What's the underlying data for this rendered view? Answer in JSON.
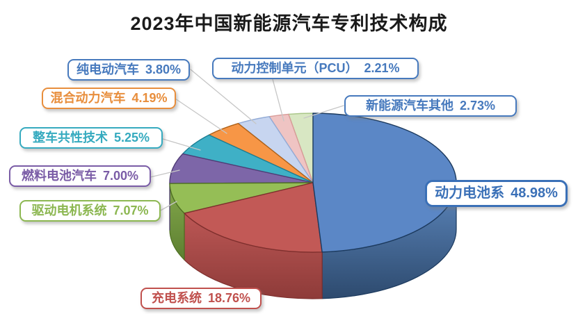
{
  "colors": {
    "background": "#ffffff",
    "title": "#1a1a1a",
    "leader_line": "#c6c6c6"
  },
  "chart_data": {
    "type": "pie",
    "style": "3d",
    "title": "2023年中国新能源汽车专利技术构成",
    "unit": "%",
    "start_angle_deg": 0,
    "direction": "clockwise",
    "legend": "callout-labels",
    "slices": [
      {
        "id": "power-battery",
        "label": "动力电池系",
        "value": 48.98,
        "display": "48.98%",
        "color": "#5b87c6",
        "stroke": "#1c3a5e",
        "side": [
          "#5d87bd",
          "#2d4a6e"
        ],
        "label_color": "#3a70b7"
      },
      {
        "id": "charging-system",
        "label": "充电系统",
        "value": 18.76,
        "display": "18.76%",
        "color": "#c25956",
        "stroke": "#7e2f2d",
        "side": [
          "#bc5755",
          "#8e3b39"
        ],
        "label_color": "#c0504d"
      },
      {
        "id": "drive-motor",
        "label": "驱动电机系统",
        "value": 7.07,
        "display": "7.07%",
        "color": "#95be56",
        "stroke": "#4e7022",
        "side": [
          "#84a94c",
          "#5d7f31"
        ],
        "label_color": "#8cb751"
      },
      {
        "id": "fuel-cell",
        "label": "燃料电池汽车",
        "value": 7.0,
        "display": "7.00%",
        "color": "#7d66a8",
        "stroke": "#503c76",
        "label_color": "#7a5ca6"
      },
      {
        "id": "vehicle-common",
        "label": "整车共性技术",
        "value": 5.25,
        "display": "5.25%",
        "color": "#3fb0c6",
        "stroke": "#1b7e93",
        "label_color": "#35aabf"
      },
      {
        "id": "hybrid",
        "label": "混合动力汽车",
        "value": 4.19,
        "display": "4.19%",
        "color": "#f79646",
        "stroke": "#ae6118",
        "label_color": "#e88e3c"
      },
      {
        "id": "bev",
        "label": "纯电动汽车",
        "value": 3.8,
        "display": "3.80%",
        "color": "#c7d5f0",
        "stroke": "#92abd6",
        "label_color": "#4679bd"
      },
      {
        "id": "pcu",
        "label": "动力控制单元（PCU）",
        "value": 2.21,
        "display": "2.21%",
        "color": "#efc4c3",
        "stroke": "#d89b98",
        "label_color": "#4679bd"
      },
      {
        "id": "nev-other",
        "label": "新能源汽车其他",
        "value": 2.73,
        "display": "2.73%",
        "color": "#d8e7c3",
        "stroke": "#a9c687",
        "label_color": "#4679bd"
      }
    ]
  }
}
